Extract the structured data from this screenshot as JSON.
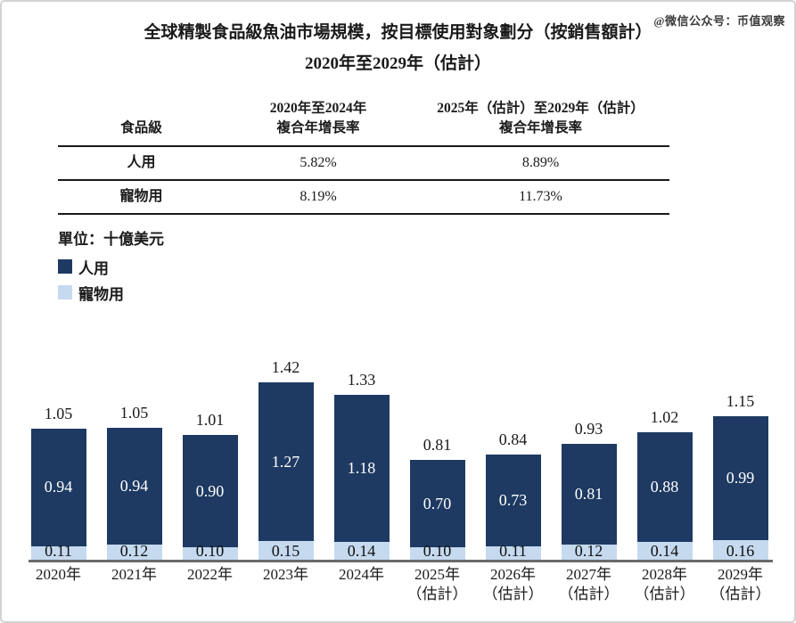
{
  "watermark": "@微信公众号：币值观察",
  "title": {
    "line1": "全球精製食品級魚油市場規模，按目標使用對象劃分（按銷售額計）",
    "line2": "2020年至2029年（估計）"
  },
  "table": {
    "col1_header": "食品級",
    "col2_header_line1": "2020年至2024年",
    "col2_header_line2": "複合年增長率",
    "col3_header_line1": "2025年（估計）至2029年（估計）",
    "col3_header_line2": "複合年增長率",
    "rows": [
      {
        "label": "人用",
        "cagr_2020_2024": "5.82%",
        "cagr_2025_2029": "8.89%"
      },
      {
        "label": "寵物用",
        "cagr_2020_2024": "8.19%",
        "cagr_2025_2029": "11.73%"
      }
    ]
  },
  "legend": {
    "unit_label": "單位：十億美元",
    "items": [
      {
        "label": "人用",
        "color": "#1e3a62"
      },
      {
        "label": "寵物用",
        "color": "#c5daef"
      }
    ]
  },
  "colors": {
    "human_series": "#1e3a62",
    "pet_series": "#c5daef",
    "axis": "#6a6a6a"
  },
  "chart_data": {
    "type": "bar",
    "stacked": true,
    "title": "全球精製食品級魚油市場規模，按目標使用對象劃分（按銷售額計）2020年至2029年（估計）",
    "unit": "十億美元",
    "legend_position": "top-left",
    "grid": false,
    "ylim": [
      0,
      1.5
    ],
    "categories": [
      {
        "line1": "2020年",
        "line2": ""
      },
      {
        "line1": "2021年",
        "line2": ""
      },
      {
        "line1": "2022年",
        "line2": ""
      },
      {
        "line1": "2023年",
        "line2": ""
      },
      {
        "line1": "2024年",
        "line2": ""
      },
      {
        "line1": "2025年",
        "line2": "（估計）"
      },
      {
        "line1": "2026年",
        "line2": "（估計）"
      },
      {
        "line1": "2027年",
        "line2": "（估計）"
      },
      {
        "line1": "2028年",
        "line2": "（估計）"
      },
      {
        "line1": "2029年",
        "line2": "（估計）"
      }
    ],
    "series": [
      {
        "name": "人用",
        "color": "#1e3a62",
        "values": [
          0.94,
          0.94,
          0.9,
          1.27,
          1.18,
          0.7,
          0.73,
          0.81,
          0.88,
          0.99
        ]
      },
      {
        "name": "寵物用",
        "color": "#c5daef",
        "values": [
          0.11,
          0.12,
          0.1,
          0.15,
          0.14,
          0.1,
          0.11,
          0.12,
          0.14,
          0.16
        ]
      }
    ],
    "totals": [
      1.05,
      1.05,
      1.01,
      1.42,
      1.33,
      0.81,
      0.84,
      0.93,
      1.02,
      1.15
    ]
  }
}
